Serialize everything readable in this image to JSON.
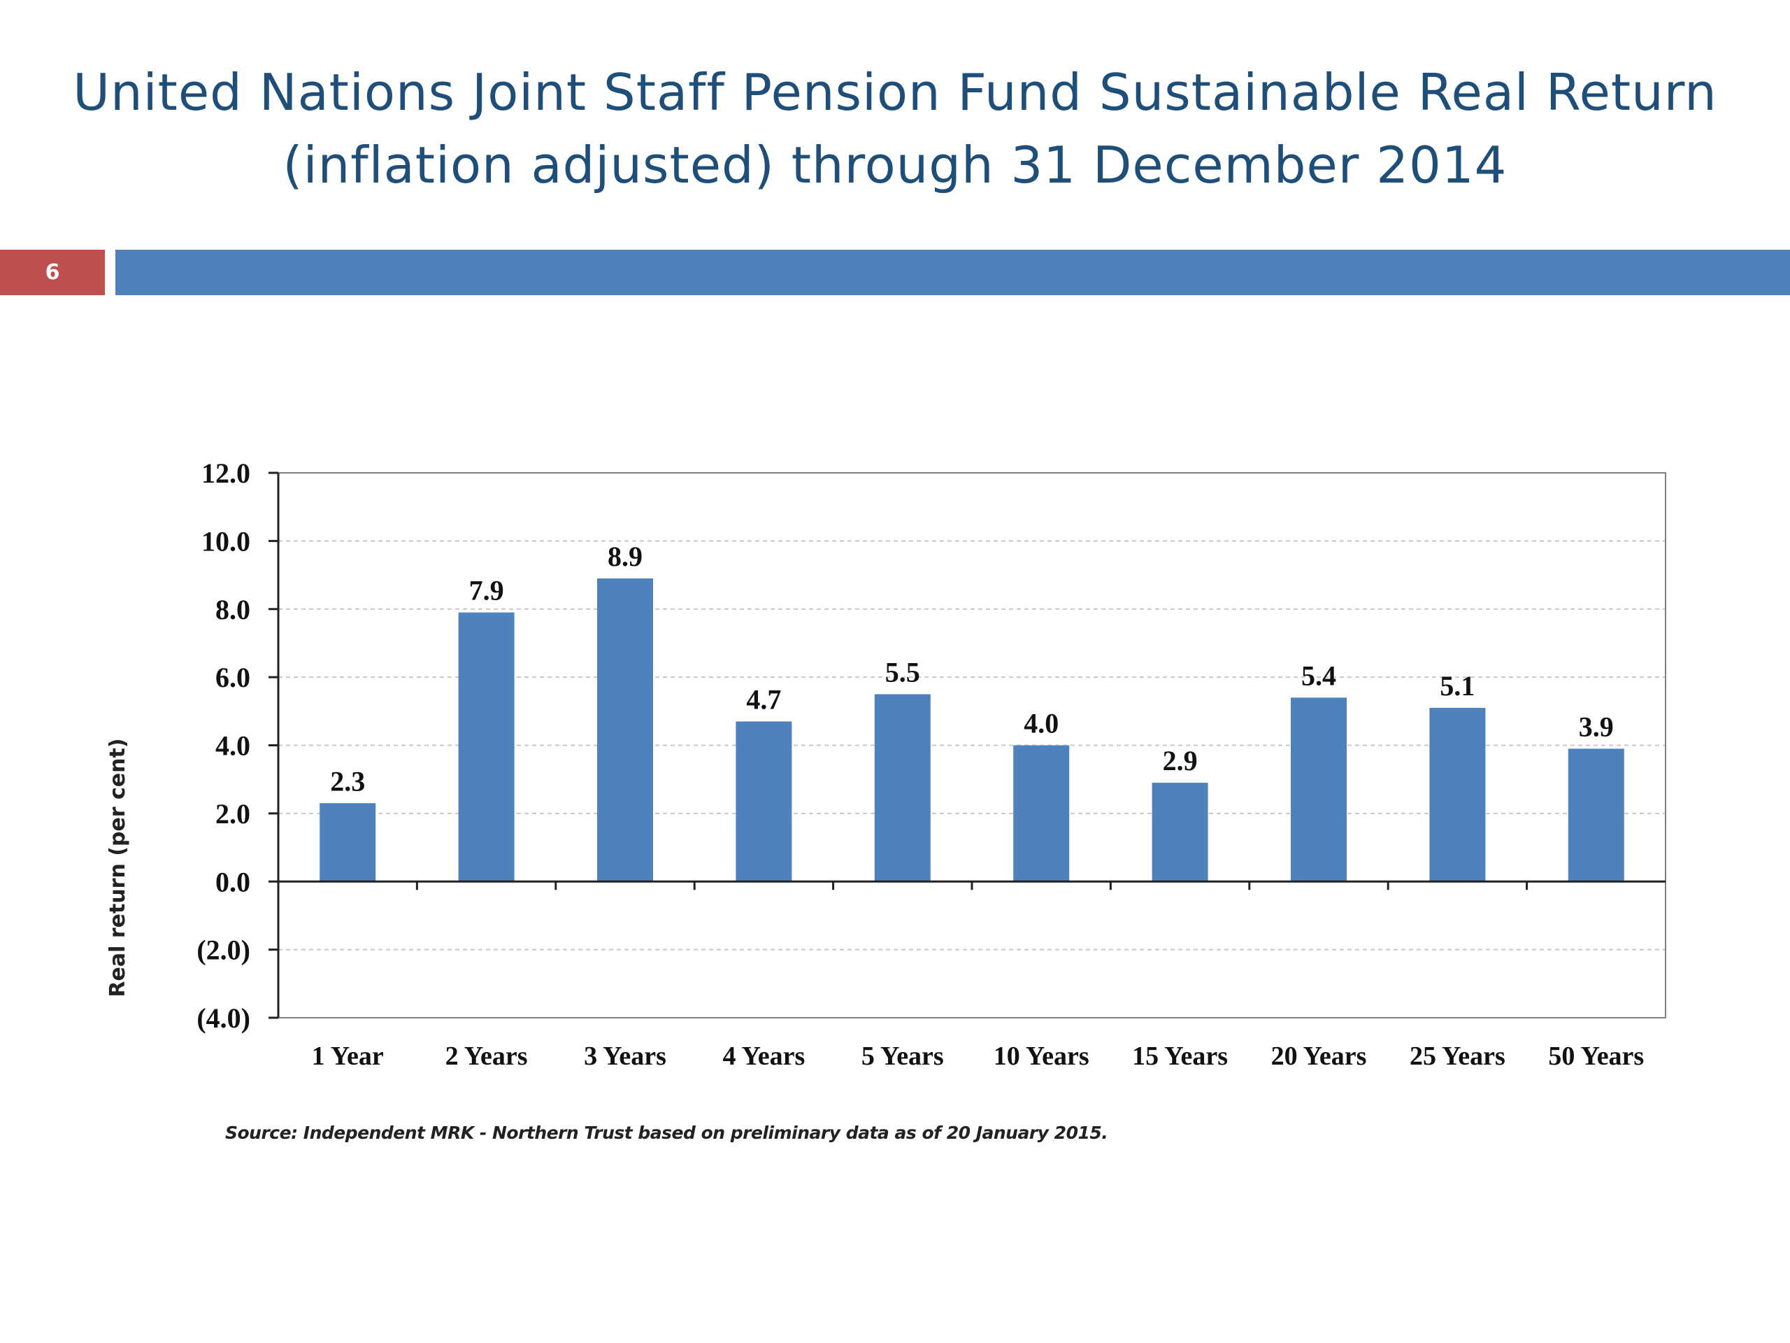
{
  "slide": {
    "title_line1": "United Nations Joint Staff Pension Fund Sustainable Real Return",
    "title_line2": "(inflation adjusted) through 31 December 2014",
    "page_number": "6",
    "source": "Source: Independent MRK - Northern Trust based on preliminary data as of 20 January 2015."
  },
  "colors": {
    "bar": "#4f81bd",
    "title": "#1f4e79",
    "page_number_box": "#c0504d",
    "rule_bar": "#4f81bd"
  },
  "chart_data": {
    "type": "bar",
    "categories": [
      "1 Year",
      "2 Years",
      "3 Years",
      "4 Years",
      "5 Years",
      "10 Years",
      "15 Years",
      "20 Years",
      "25 Years",
      "50 Years"
    ],
    "values": [
      2.3,
      7.9,
      8.9,
      4.7,
      5.5,
      4.0,
      2.9,
      5.4,
      5.1,
      3.9
    ],
    "value_labels": [
      "2.3",
      "7.9",
      "8.9",
      "4.7",
      "5.5",
      "4.0",
      "2.9",
      "5.4",
      "5.1",
      "3.9"
    ],
    "ylabel": "Real return (per cent)",
    "xlabel": "",
    "ylim": [
      -4,
      12
    ],
    "yticks": [
      12,
      10,
      8,
      6,
      4,
      2,
      0,
      -2,
      -4
    ],
    "ytick_labels": [
      "12.0",
      "10.0",
      "8.0",
      "6.0",
      "4.0",
      "2.0",
      "0.0",
      "(2.0)",
      "(4.0)"
    ],
    "grid": "horizontal dashed",
    "legend": "none"
  }
}
